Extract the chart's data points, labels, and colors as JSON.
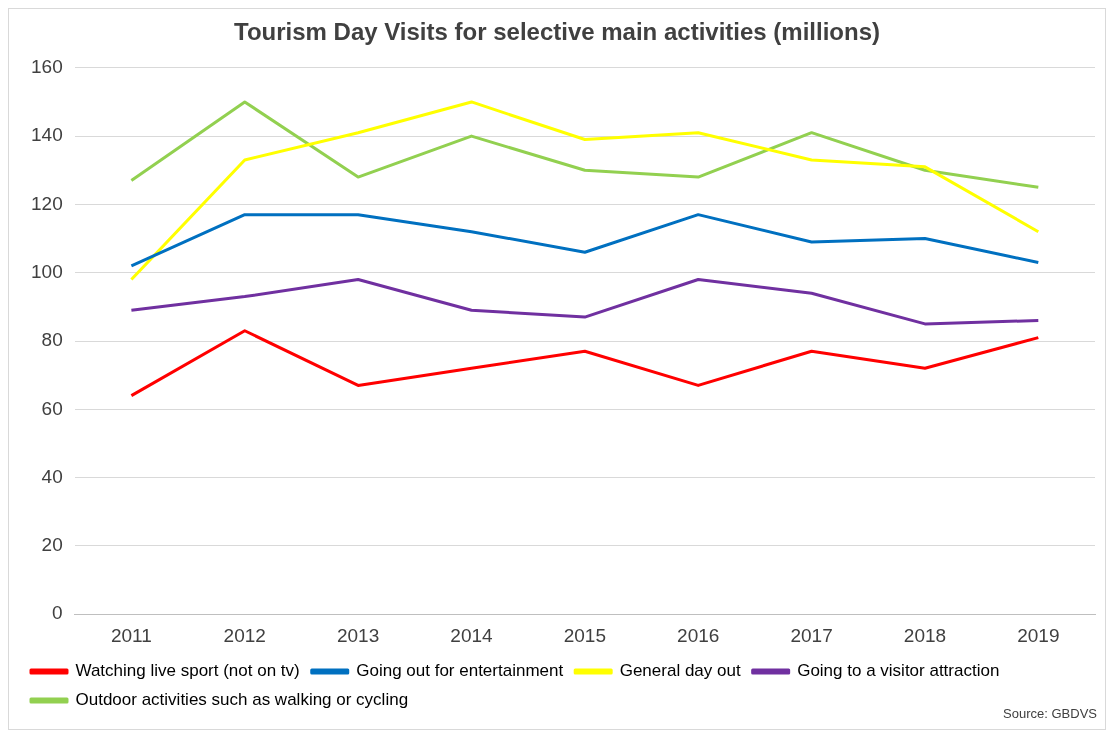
{
  "chart_data": {
    "type": "line",
    "title": "Tourism Day Visits for selective main activities (millions)",
    "categories": [
      "2011",
      "2012",
      "2013",
      "2014",
      "2015",
      "2016",
      "2017",
      "2018",
      "2019"
    ],
    "series": [
      {
        "name": "Watching live sport (not on tv)",
        "color": "#ff0000",
        "values": [
          64,
          83,
          67,
          72,
          77,
          67,
          77,
          72,
          81
        ]
      },
      {
        "name": "Going out for entertainment",
        "color": "#0070c0",
        "values": [
          102,
          117,
          117,
          112,
          106,
          117,
          109,
          110,
          103
        ]
      },
      {
        "name": "General day out",
        "color": "#ffff00",
        "values": [
          98,
          133,
          141,
          150,
          139,
          141,
          133,
          131,
          112
        ]
      },
      {
        "name": "Going to a visitor attraction",
        "color": "#7030a0",
        "values": [
          89,
          93,
          98,
          89,
          87,
          98,
          94,
          85,
          86
        ]
      },
      {
        "name": "Outdoor activities such as walking or cycling",
        "color": "#92d050",
        "values": [
          127,
          150,
          128,
          140,
          130,
          128,
          141,
          130,
          125
        ]
      }
    ],
    "ylim": [
      0,
      160
    ],
    "yticks": [
      0,
      20,
      40,
      60,
      80,
      100,
      120,
      140,
      160
    ],
    "grid": "y",
    "legend": "bottom",
    "marker": "none",
    "line_style": "solid",
    "annotations": [
      "Source: GBDVS"
    ]
  }
}
